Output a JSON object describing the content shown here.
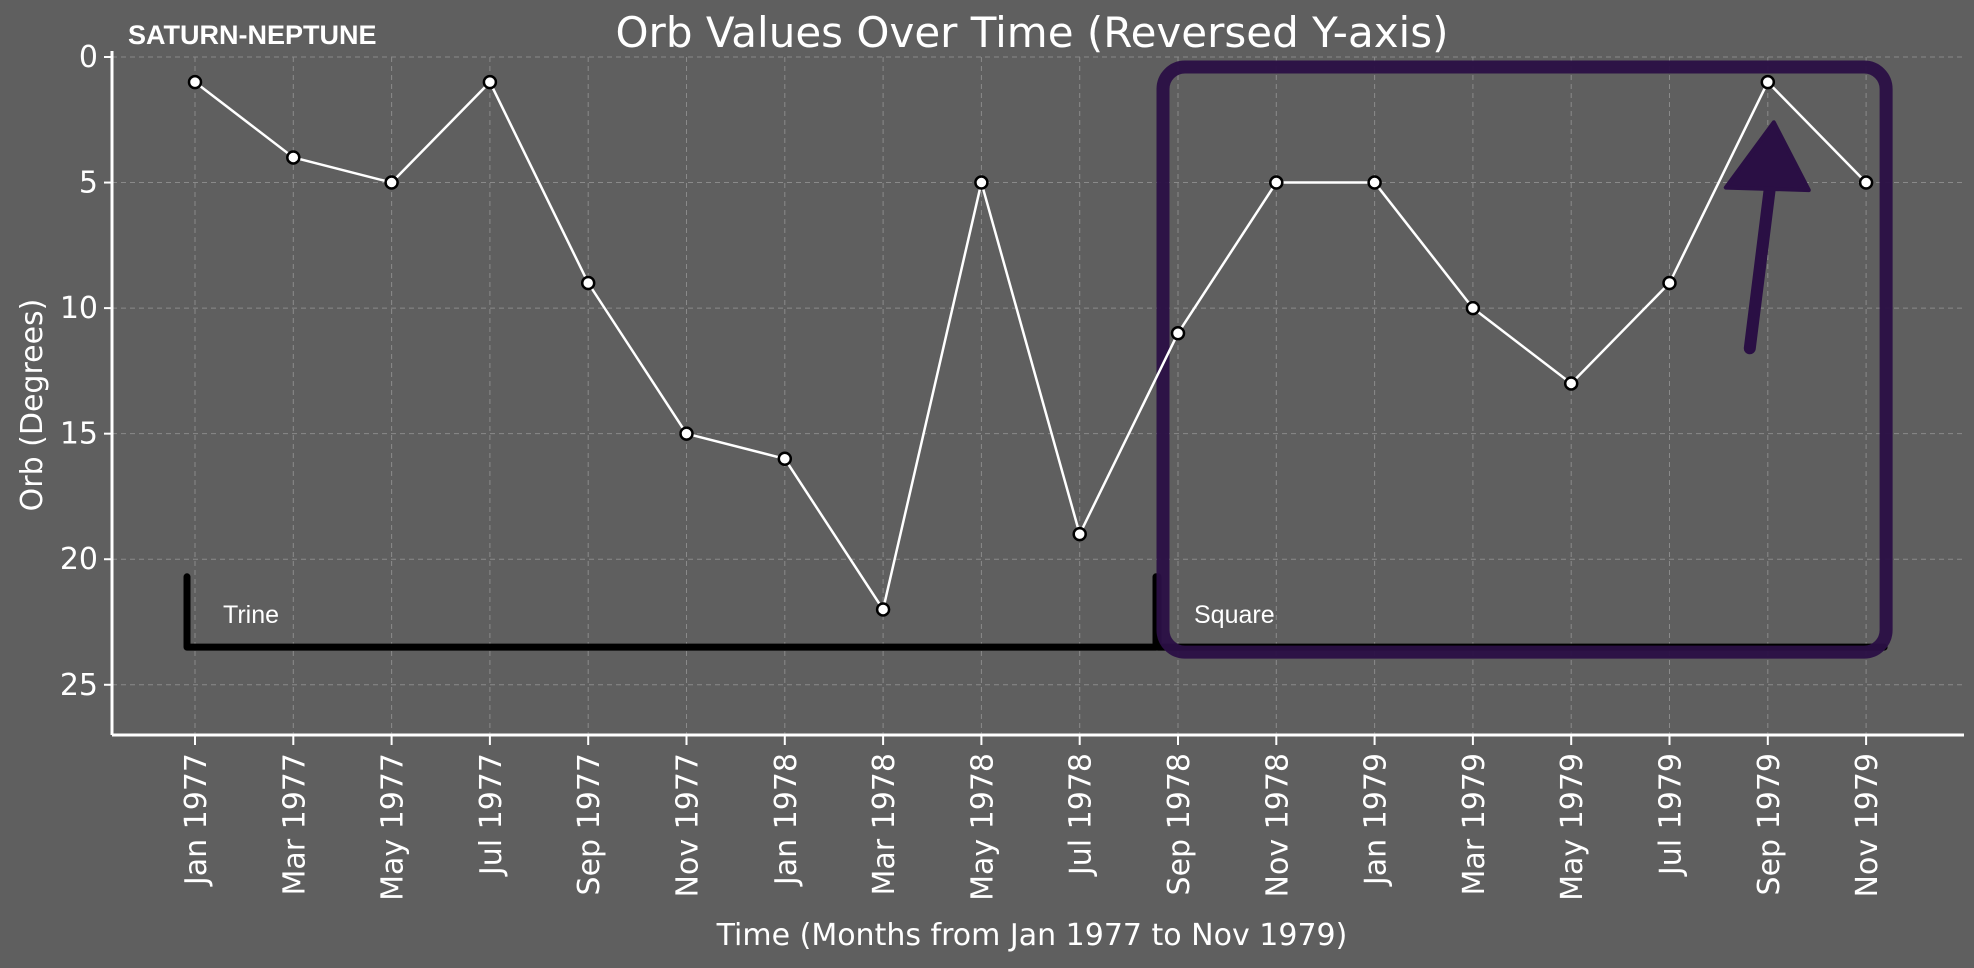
{
  "corner_label": "SATURN-NEPTUNE",
  "colors": {
    "background": "#5f5f5f",
    "line": "#ffffff",
    "grid": "#8a8a8a",
    "band_outline": "#000000",
    "highlight": "#2a0f44"
  },
  "chart_data": {
    "type": "line",
    "title": "Orb Values Over Time (Reversed Y-axis)",
    "xlabel": "Time (Months from Jan 1977 to Nov 1979)",
    "ylabel": "Orb (Degrees)",
    "ylim": [
      27,
      0
    ],
    "y_reversed": true,
    "yticks": [
      "0",
      "5",
      "10",
      "15",
      "20",
      "25"
    ],
    "grid": true,
    "x": [
      "Jan 1977",
      "Mar 1977",
      "May 1977",
      "Jul 1977",
      "Sep 1977",
      "Nov 1977",
      "Jan 1978",
      "Mar 1978",
      "May 1978",
      "Jul 1978",
      "Sep 1978",
      "Nov 1978",
      "Jan 1979",
      "Mar 1979",
      "May 1979",
      "Jul 1979",
      "Sep 1979",
      "Nov 1979"
    ],
    "series": [
      {
        "values": [
          1,
          4,
          5,
          1,
          9,
          15,
          16,
          22,
          5,
          19,
          11,
          5,
          5,
          10,
          13,
          9,
          1,
          5
        ]
      }
    ],
    "annotations": [
      {
        "text": "Trine",
        "from": "Jan 1977",
        "to": "Sep 1978"
      },
      {
        "text": "Square",
        "from": "Sep 1978",
        "to": "Nov 1979"
      }
    ],
    "highlight": {
      "from": "Sep 1978",
      "to": "Nov 1979",
      "arrow_to": "Sep 1979"
    }
  }
}
